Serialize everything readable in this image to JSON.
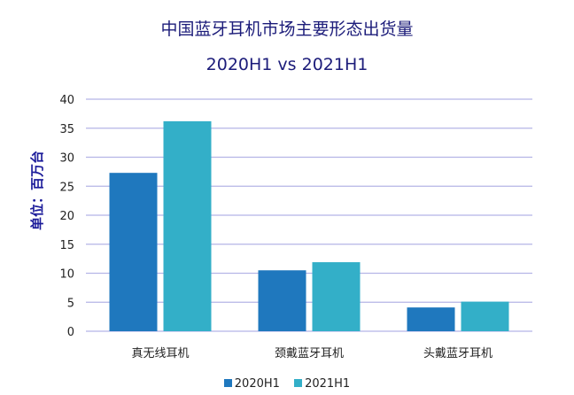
{
  "chart_data": {
    "type": "bar",
    "title": "中国蓝牙耳机市场主要形态出货量",
    "subtitle": "2020H1 vs 2021H1",
    "ylabel": "单位：百万台",
    "xlabel": "",
    "ylim": [
      0,
      40
    ],
    "yticks": [
      0,
      5,
      10,
      15,
      20,
      25,
      30,
      35,
      40
    ],
    "grid": true,
    "legend_position": "bottom",
    "categories": [
      "真无线耳机",
      "颈戴蓝牙耳机",
      "头戴蓝牙耳机"
    ],
    "series": [
      {
        "name": "2020H1",
        "color": "#1f78be",
        "values": [
          27.3,
          10.5,
          4.1
        ]
      },
      {
        "name": "2021H1",
        "color": "#33afc8",
        "values": [
          36.2,
          11.9,
          5.1
        ]
      }
    ]
  }
}
